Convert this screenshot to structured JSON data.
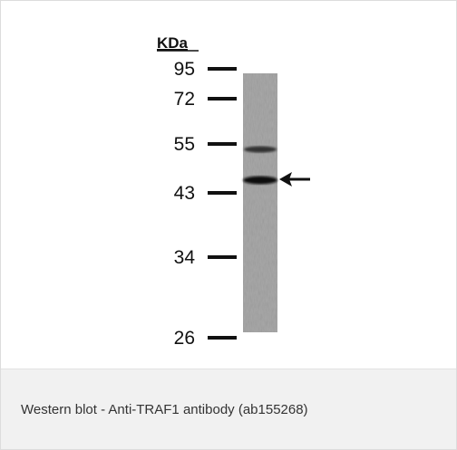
{
  "figure": {
    "unit": "KDa",
    "markers": [
      "95",
      "72",
      "55",
      "43",
      "34",
      "26"
    ]
  },
  "caption": "Western blot - Anti-TRAF1 antibody (ab155268)"
}
